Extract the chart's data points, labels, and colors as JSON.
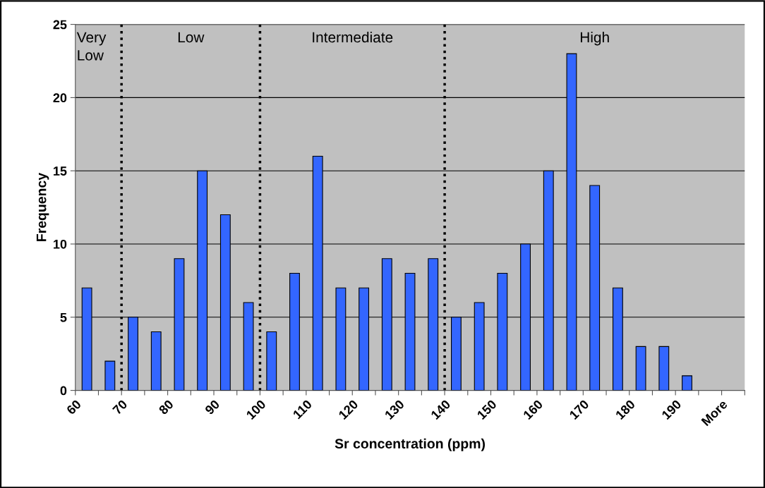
{
  "chart_data": {
    "type": "histogram",
    "xlabel": "Sr concentration (ppm)",
    "ylabel": "Frequency",
    "bins": [
      60,
      65,
      70,
      75,
      80,
      85,
      90,
      95,
      100,
      105,
      110,
      115,
      120,
      125,
      130,
      135,
      140,
      145,
      150,
      155,
      160,
      165,
      170,
      175,
      180,
      185,
      190,
      195,
      200,
      205
    ],
    "values": [
      7,
      2,
      5,
      4,
      9,
      15,
      12,
      6,
      4,
      8,
      16,
      7,
      7,
      9,
      8,
      9,
      5,
      6,
      8,
      10,
      15,
      23,
      14,
      7,
      3,
      3,
      1,
      0,
      0
    ],
    "color": "#3366ff",
    "xlim": [
      60,
      205
    ],
    "xticks": [
      60,
      {
        "value": 65,
        "label": null
      },
      70,
      {
        "value": 75,
        "label": null
      },
      80,
      {
        "value": 85,
        "label": null
      },
      90,
      {
        "value": 95,
        "label": null
      },
      100,
      {
        "value": 105,
        "label": null
      },
      110,
      {
        "value": 115,
        "label": null
      },
      120,
      {
        "value": 125,
        "label": null
      },
      130,
      {
        "value": 135,
        "label": null
      },
      140,
      {
        "value": 145,
        "label": null
      },
      150,
      {
        "value": 155,
        "label": null
      },
      160,
      {
        "value": 165,
        "label": null
      },
      170,
      {
        "value": 175,
        "label": null
      },
      180,
      {
        "value": 185,
        "label": null
      },
      190,
      {
        "value": 195,
        "label": null
      },
      {
        "value": 200,
        "label": "More"
      },
      {
        "value": 205,
        "label": null
      }
    ],
    "ylim": [
      0,
      25
    ],
    "yticks": [
      0,
      5,
      10,
      15,
      20,
      25
    ],
    "grid": "y",
    "ref_lines": [
      {
        "axis": "x",
        "value": 70,
        "color": "#000000",
        "line_style": "dotted"
      },
      {
        "axis": "x",
        "value": 100,
        "color": "#000000",
        "line_style": "dotted"
      },
      {
        "axis": "x",
        "value": 140,
        "color": "#000000",
        "line_style": "dotted"
      }
    ],
    "annotations": [
      "Very\nLow",
      "Low",
      "Intermediate",
      "High"
    ]
  }
}
